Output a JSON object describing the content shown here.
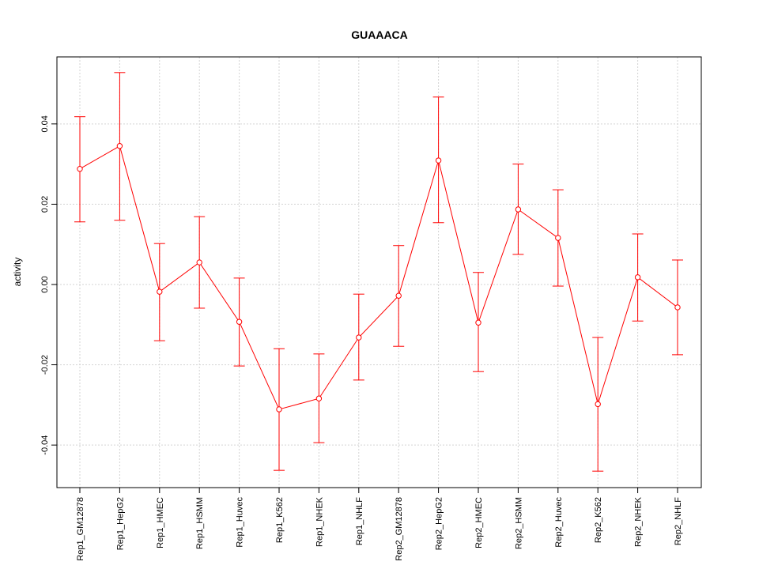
{
  "chart_data": {
    "type": "line",
    "title": "GUAAACA",
    "xlabel": "",
    "ylabel": "activity",
    "ylim": [
      -0.0506,
      0.0567
    ],
    "yticks": [
      -0.04,
      -0.02,
      0.0,
      0.02,
      0.04
    ],
    "ytick_labels": [
      "-0.04",
      "-0.02",
      "0.00",
      "0.02",
      "0.04"
    ],
    "grid": true,
    "categories": [
      "Rep1_GM12878",
      "Rep1_HepG2",
      "Rep1_HMEC",
      "Rep1_HSMM",
      "Rep1_Huvec",
      "Rep1_K562",
      "Rep1_NHEK",
      "Rep1_NHLF",
      "Rep2_GM12878",
      "Rep2_HepG2",
      "Rep2_HMEC",
      "Rep2_HSMM",
      "Rep2_Huvec",
      "Rep2_K562",
      "Rep2_NHEK",
      "Rep2_NHLF"
    ],
    "series": [
      {
        "name": "activity",
        "color": "#ff0000",
        "values": [
          0.0288,
          0.0345,
          -0.0018,
          0.0055,
          -0.0093,
          -0.0311,
          -0.0284,
          -0.0132,
          -0.0028,
          0.0309,
          -0.0095,
          0.0187,
          0.0116,
          -0.0298,
          0.0018,
          -0.0057
        ],
        "upper": [
          0.0418,
          0.0528,
          0.0102,
          0.0169,
          0.0016,
          -0.016,
          -0.0173,
          -0.0024,
          0.0097,
          0.0467,
          0.003,
          0.03,
          0.0236,
          -0.0132,
          0.0126,
          0.0061
        ],
        "lower": [
          0.0156,
          0.016,
          -0.014,
          -0.0059,
          -0.0203,
          -0.0463,
          -0.0394,
          -0.0238,
          -0.0154,
          0.0154,
          -0.0217,
          0.0075,
          -0.0004,
          -0.0465,
          -0.0091,
          -0.0175
        ]
      }
    ]
  }
}
